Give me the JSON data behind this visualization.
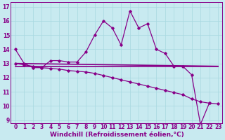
{
  "xlabel": "Windchill (Refroidissement éolien,°C)",
  "background_color": "#c8eaf0",
  "grid_color": "#a8d8e0",
  "line_color": "#880088",
  "xlim": [
    -0.5,
    23.5
  ],
  "ylim": [
    8.8,
    17.3
  ],
  "xticks": [
    0,
    1,
    2,
    3,
    4,
    5,
    6,
    7,
    8,
    9,
    10,
    11,
    12,
    13,
    14,
    15,
    16,
    17,
    18,
    19,
    20,
    21,
    22,
    23
  ],
  "yticks": [
    9,
    10,
    11,
    12,
    13,
    14,
    15,
    16,
    17
  ],
  "curve1_x": [
    0,
    1,
    2,
    3,
    4,
    5,
    6,
    7,
    8,
    9,
    10,
    11,
    12,
    13,
    14,
    15,
    16,
    17,
    18,
    19,
    20,
    21,
    22
  ],
  "curve1_y": [
    14.0,
    13.0,
    12.7,
    12.7,
    13.2,
    13.2,
    13.1,
    13.1,
    13.8,
    15.0,
    16.0,
    15.5,
    14.3,
    16.7,
    15.5,
    15.8,
    14.0,
    13.7,
    12.8,
    12.8,
    12.2,
    8.7,
    10.2
  ],
  "curve2_x": [
    0,
    1,
    2,
    3,
    4,
    5,
    6,
    7,
    8,
    9,
    10,
    11,
    12,
    13,
    14,
    15,
    16,
    17,
    18,
    19,
    20,
    21,
    22,
    23
  ],
  "curve2_y": [
    12.8,
    12.8,
    12.8,
    12.8,
    12.8,
    12.8,
    12.8,
    12.8,
    12.8,
    12.8,
    12.8,
    12.8,
    12.8,
    12.8,
    12.8,
    12.8,
    12.8,
    12.8,
    12.8,
    12.8,
    12.8,
    12.8,
    12.8,
    12.8
  ],
  "curve3_x": [
    0,
    1,
    2,
    3,
    4,
    5,
    6,
    7,
    8,
    9,
    10,
    11,
    12,
    13,
    14,
    15,
    16,
    17,
    18,
    19,
    20,
    21,
    22,
    23
  ],
  "curve3_y": [
    13.0,
    12.9,
    12.8,
    12.7,
    12.65,
    12.6,
    12.5,
    12.45,
    12.4,
    12.3,
    12.15,
    12.0,
    11.85,
    11.7,
    11.55,
    11.4,
    11.25,
    11.1,
    10.95,
    10.8,
    10.5,
    10.3,
    10.2,
    10.15
  ],
  "curve4_x": [
    0,
    23
  ],
  "curve4_y": [
    13.0,
    12.8
  ],
  "tick_fontsize": 5.5,
  "xlabel_fontsize": 6.5
}
